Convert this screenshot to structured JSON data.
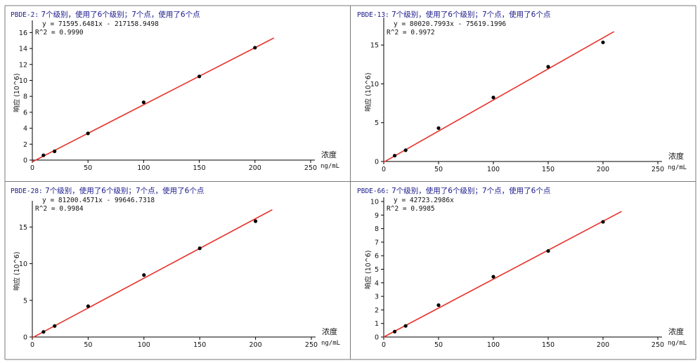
{
  "chart_data": [
    {
      "type": "scatter",
      "title_code": "PBDE-2:",
      "title_rest": " 7个级别，使用了6个级别；7个点，使用了6个点",
      "equation": "y = 71595.6481x - 217158.9498",
      "r2": "R^2 = 0.9990",
      "ylabel": "响应 (10^6)",
      "xlabel": "浓度",
      "xunit": "ng/mL",
      "xlim": [
        0,
        250
      ],
      "ylim": [
        0,
        17
      ],
      "xticks": [
        0,
        50,
        100,
        150,
        200,
        250
      ],
      "yticks": [
        0,
        2,
        4,
        6,
        8,
        10,
        12,
        14,
        16
      ],
      "points": [
        [
          10,
          0.6
        ],
        [
          20,
          1.1
        ],
        [
          50,
          3.35
        ],
        [
          100,
          7.25
        ],
        [
          150,
          10.5
        ],
        [
          200,
          14.1
        ]
      ],
      "fit_line": {
        "x": [
          0,
          217
        ],
        "y": [
          -0.22,
          15.32
        ]
      }
    },
    {
      "type": "scatter",
      "title_code": "PBDE-13:",
      "title_rest": " 7个级别，使用了6个级别；7个点，使用了6个点",
      "equation": "y = 80020.7993x - 75619.1996",
      "r2": "R^2 = 0.9972",
      "ylabel": "响应 (10^6)",
      "xlabel": "浓度",
      "xunit": "ng/mL",
      "xlim": [
        0,
        250
      ],
      "ylim": [
        0,
        18
      ],
      "xticks": [
        0,
        50,
        100,
        150,
        200,
        250
      ],
      "yticks": [
        0,
        5,
        10,
        15
      ],
      "points": [
        [
          10,
          0.75
        ],
        [
          20,
          1.45
        ],
        [
          50,
          4.3
        ],
        [
          100,
          8.25
        ],
        [
          150,
          12.2
        ],
        [
          200,
          15.35
        ]
      ],
      "fit_line": {
        "x": [
          0,
          210
        ],
        "y": [
          -0.08,
          16.73
        ]
      }
    },
    {
      "type": "scatter",
      "title_code": "PBDE-28:",
      "title_rest": " 7个级别，使用了6个级别；7个点，使用了6个点",
      "equation": "y = 81200.4571x - 99646.7318",
      "r2": "R^2 = 0.9984",
      "ylabel": "响应 (10^6)",
      "xlabel": "浓度",
      "xunit": "ng/mL",
      "xlim": [
        0,
        250
      ],
      "ylim": [
        0,
        18
      ],
      "xticks": [
        0,
        50,
        100,
        150,
        200,
        250
      ],
      "yticks": [
        0,
        5,
        10,
        15
      ],
      "points": [
        [
          10,
          0.7
        ],
        [
          20,
          1.5
        ],
        [
          50,
          4.2
        ],
        [
          100,
          8.45
        ],
        [
          150,
          12.1
        ],
        [
          200,
          15.8
        ]
      ],
      "fit_line": {
        "x": [
          0,
          215
        ],
        "y": [
          -0.1,
          17.36
        ]
      }
    },
    {
      "type": "scatter",
      "title_code": "PBDE-66:",
      "title_rest": " 7个级别，使用了6个级别；7个点，使用了6个点",
      "equation": "y = 42723.2986x",
      "r2": "R^2 = 0.9985",
      "ylabel": "响应 (10^6)",
      "xlabel": "浓度",
      "xunit": "ng/mL",
      "xlim": [
        0,
        250
      ],
      "ylim": [
        0,
        10
      ],
      "xticks": [
        0,
        50,
        100,
        150,
        200,
        250
      ],
      "yticks": [
        0,
        1,
        2,
        3,
        4,
        5,
        6,
        7,
        8,
        9,
        10
      ],
      "points": [
        [
          10,
          0.4
        ],
        [
          20,
          0.82
        ],
        [
          50,
          2.35
        ],
        [
          100,
          4.45
        ],
        [
          150,
          6.35
        ],
        [
          200,
          8.5
        ]
      ],
      "fit_line": {
        "x": [
          0,
          217
        ],
        "y": [
          0,
          9.27
        ]
      }
    }
  ],
  "colors": {
    "fit_line": "#e8332b",
    "points": "#000000",
    "title": "#1a1a8c",
    "border": "#7a7a7a"
  }
}
